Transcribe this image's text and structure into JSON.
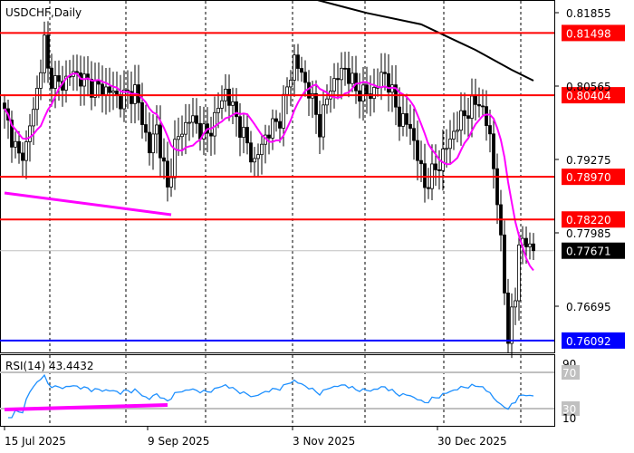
{
  "chart_data": {
    "type": "candlestick",
    "title": "USDCHF,Daily",
    "y_axis_ticks": [
      0.81855,
      0.80565,
      0.79275,
      0.77985,
      0.76695
    ],
    "ylim": [
      0.7577,
      0.8208
    ],
    "x_tick_labels": [
      "15 Jul 2025",
      "9 Sep 2025",
      "3 Nov 2025",
      "30 Dec 2025"
    ],
    "grid": "vertical dashed",
    "close_anchors": [
      {
        "bar": 0,
        "close": 0.80087
      },
      {
        "bar": 4,
        "close": 0.79291
      },
      {
        "bar": 6,
        "close": 0.7953
      },
      {
        "bar": 9,
        "close": 0.80485
      },
      {
        "bar": 11,
        "close": 0.81361
      },
      {
        "bar": 12,
        "close": 0.80804
      },
      {
        "bar": 15,
        "close": 0.80565
      },
      {
        "bar": 19,
        "close": 0.80804
      },
      {
        "bar": 24,
        "close": 0.80565
      },
      {
        "bar": 29,
        "close": 0.80485
      },
      {
        "bar": 32,
        "close": 0.80326
      },
      {
        "bar": 36,
        "close": 0.80485
      },
      {
        "bar": 40,
        "close": 0.7945
      },
      {
        "bar": 42,
        "close": 0.79848
      },
      {
        "bar": 45,
        "close": 0.78733
      },
      {
        "bar": 47,
        "close": 0.7953
      },
      {
        "bar": 51,
        "close": 0.80008
      },
      {
        "bar": 56,
        "close": 0.79689
      },
      {
        "bar": 61,
        "close": 0.80485
      },
      {
        "bar": 65,
        "close": 0.79848
      },
      {
        "bar": 69,
        "close": 0.79211
      },
      {
        "bar": 72,
        "close": 0.79689
      },
      {
        "bar": 76,
        "close": 0.80008
      },
      {
        "bar": 80,
        "close": 0.81043
      },
      {
        "bar": 84,
        "close": 0.80485
      },
      {
        "bar": 87,
        "close": 0.79848
      },
      {
        "bar": 90,
        "close": 0.80565
      },
      {
        "bar": 94,
        "close": 0.80884
      },
      {
        "bar": 97,
        "close": 0.80485
      },
      {
        "bar": 101,
        "close": 0.80406
      },
      {
        "bar": 105,
        "close": 0.80804
      },
      {
        "bar": 109,
        "close": 0.80008
      },
      {
        "bar": 112,
        "close": 0.79848
      },
      {
        "bar": 116,
        "close": 0.78813
      },
      {
        "bar": 120,
        "close": 0.79211
      },
      {
        "bar": 124,
        "close": 0.79769
      },
      {
        "bar": 127,
        "close": 0.80087
      },
      {
        "bar": 131,
        "close": 0.80326
      },
      {
        "bar": 134,
        "close": 0.79689
      },
      {
        "bar": 136,
        "close": 0.78574
      },
      {
        "bar": 137,
        "close": 0.77778
      },
      {
        "bar": 139,
        "close": 0.76185
      },
      {
        "bar": 141,
        "close": 0.76822
      },
      {
        "bar": 142,
        "close": 0.77858
      },
      {
        "bar": 144,
        "close": 0.77778
      },
      {
        "bar": 146,
        "close": 0.77671
      }
    ],
    "ma_long_anchors": [
      {
        "bar": 85,
        "value": 0.821
      },
      {
        "bar": 100,
        "value": 0.8185
      },
      {
        "bar": 115,
        "value": 0.8165
      },
      {
        "bar": 130,
        "value": 0.812
      },
      {
        "bar": 140,
        "value": 0.8085
      },
      {
        "bar": 146,
        "value": 0.8066
      }
    ],
    "ma_short_period": 10,
    "colors": {
      "ma_long": "#000000",
      "ma_short": "#ff00ff",
      "resistance": "#ff0000",
      "support": "#0000ff",
      "rsi": "#1e90ff",
      "trendline": "#ff00ff",
      "price_label": "#000000"
    },
    "levels": [
      {
        "value": 0.81498,
        "label": "0.81498",
        "color": "#ff0000"
      },
      {
        "value": 0.80404,
        "label": "0.80404",
        "color": "#ff0000"
      },
      {
        "value": 0.7897,
        "label": "0.78970",
        "color": "#ff0000"
      },
      {
        "value": 0.7822,
        "label": "0.78220",
        "color": "#ff0000"
      },
      {
        "value": 0.76092,
        "label": "0.76092",
        "color": "#0000ff"
      }
    ],
    "current_price": {
      "value": 0.77671,
      "label": "0.77671"
    },
    "trendline_price": [
      {
        "bar": 0,
        "value": 0.78686
      },
      {
        "bar": 46,
        "value": 0.78304
      }
    ],
    "rsi": {
      "label": "RSI(14) 43.4432",
      "period": 14,
      "levels": [
        70,
        30
      ],
      "ticks": [
        "90",
        "70",
        "30",
        "10"
      ],
      "trendline": [
        {
          "bar": 0,
          "value": 29
        },
        {
          "bar": 45,
          "value": 34
        }
      ]
    }
  }
}
